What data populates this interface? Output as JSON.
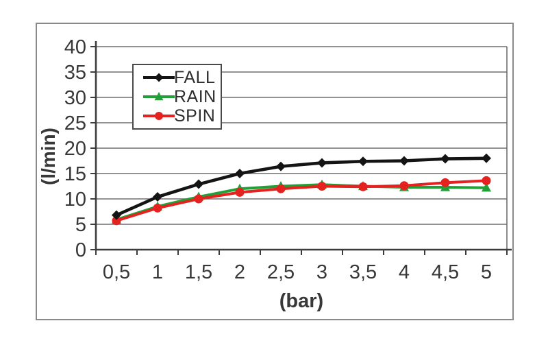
{
  "chart_data": {
    "type": "line",
    "title": "",
    "xlabel": "(bar)",
    "ylabel": "(l/min)",
    "x": [
      0.5,
      1,
      1.5,
      2,
      2.5,
      3,
      3.5,
      4,
      4.5,
      5
    ],
    "x_tick_labels": [
      "0,5",
      "1",
      "1,5",
      "2",
      "2,5",
      "3",
      "3,5",
      "4",
      "4,5",
      "5"
    ],
    "ylim": [
      0,
      40
    ],
    "ytick_step": 5,
    "ytick_labels": [
      "0",
      "5",
      "10",
      "15",
      "20",
      "25",
      "30",
      "35",
      "40"
    ],
    "grid": true,
    "legend_position": "upper-left-inside",
    "series": [
      {
        "name": "FALL",
        "color": "#141414",
        "marker": "diamond",
        "values": [
          6.8,
          10.4,
          12.9,
          15.0,
          16.4,
          17.1,
          17.4,
          17.5,
          17.9,
          18.0
        ]
      },
      {
        "name": "RAIN",
        "color": "#21a038",
        "marker": "triangle",
        "values": [
          5.9,
          8.5,
          10.4,
          12.0,
          12.5,
          12.8,
          12.5,
          12.3,
          12.3,
          12.2
        ]
      },
      {
        "name": "SPIN",
        "color": "#e42320",
        "marker": "circle",
        "values": [
          5.7,
          8.2,
          10.0,
          11.3,
          12.0,
          12.5,
          12.4,
          12.6,
          13.2,
          13.6
        ]
      }
    ]
  },
  "colors": {
    "background": "#ffffff",
    "figure_border": "#8a8a8a",
    "grid": "#6e6e6e",
    "axis": "#3c3c3c",
    "tick_text": "#383838",
    "axis_title_text": "#383838",
    "legend_border": "#4a4a4a",
    "legend_text": "#2e2e2e"
  }
}
